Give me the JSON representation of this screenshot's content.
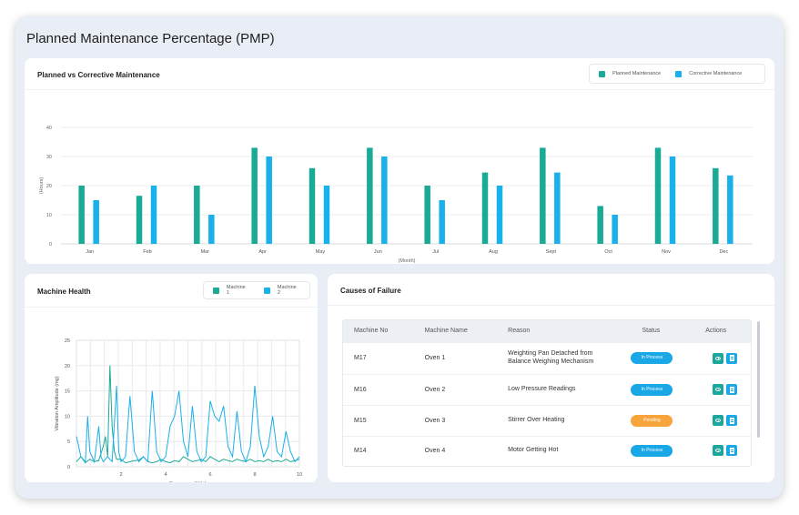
{
  "page": {
    "title": "Planned Maintenance Percentage (PMP)"
  },
  "colors": {
    "planned": "#1aaa96",
    "corrective": "#1ab0ea",
    "in_process": "#1aa7e6",
    "pending": "#f7a43a"
  },
  "bar_card": {
    "title": "Planned vs Corrective Maintenance",
    "legend": [
      "Planned Maintenance",
      "Corrective Maintenance"
    ]
  },
  "health_card": {
    "title": "Machine Health",
    "legend": [
      "Machine 1",
      "Machine 2"
    ]
  },
  "failure_card": {
    "title": "Causes of Failure",
    "columns": [
      "Machine No",
      "Machine Name",
      "Reason",
      "Status",
      "Actions"
    ],
    "rows": [
      {
        "no": "M17",
        "name": "Oven 1",
        "reason": "Weighting Pan Detached from Balance Weighing Mechanism",
        "status": "In Process",
        "status_type": "in_process"
      },
      {
        "no": "M16",
        "name": "Oven 2",
        "reason": "Low Pressure Readings",
        "status": "In Process",
        "status_type": "in_process"
      },
      {
        "no": "M15",
        "name": "Oven 3",
        "reason": "Stirrer Over Heating",
        "status": "Pending",
        "status_type": "pending"
      },
      {
        "no": "M14",
        "name": "Oven 4",
        "reason": "Motor Getting Hot",
        "status": "In Process",
        "status_type": "in_process"
      }
    ]
  },
  "chart_data": [
    {
      "type": "bar",
      "title": "Planned vs Corrective Maintenance",
      "xlabel": "(Month)",
      "ylabel": "(Hours)",
      "ylim": [
        0,
        40
      ],
      "yticks": [
        0,
        10,
        20,
        30,
        40
      ],
      "grid": true,
      "legend_position": "top-right",
      "categories": [
        "Jan",
        "Feb",
        "Mar",
        "Apr",
        "May",
        "Jun",
        "Jul",
        "Aug",
        "Sept",
        "Oct",
        "Nov",
        "Dec"
      ],
      "series": [
        {
          "name": "Planned Maintenance",
          "values": [
            20,
            16.5,
            20,
            33,
            26,
            33,
            20,
            24.5,
            33,
            13,
            33,
            26
          ]
        },
        {
          "name": "Corrective Maintenance",
          "values": [
            15,
            20,
            10,
            30,
            20,
            30,
            15,
            20,
            24.5,
            10,
            30,
            23.5
          ]
        }
      ]
    },
    {
      "type": "line",
      "title": "Machine Health",
      "xlabel": "Frequency (kHz)",
      "ylabel": "Vibration Amplitude (mg)",
      "xlim": [
        0,
        10
      ],
      "ylim": [
        0,
        25
      ],
      "xticks": [
        2,
        4,
        6,
        8,
        10
      ],
      "yticks": [
        0,
        5,
        10,
        15,
        20,
        25
      ],
      "grid": true,
      "legend_position": "top-right",
      "series": [
        {
          "name": "Machine 1",
          "x": [
            0,
            0.2,
            0.4,
            0.6,
            0.8,
            1.0,
            1.2,
            1.3,
            1.4,
            1.5,
            1.6,
            1.7,
            1.8,
            2.0,
            2.2,
            2.4,
            2.6,
            2.8,
            3.0,
            3.2,
            3.4,
            3.6,
            3.8,
            4.0,
            4.2,
            4.4,
            4.6,
            4.8,
            5.0,
            5.2,
            5.4,
            5.6,
            5.8,
            6.0,
            6.2,
            6.4,
            6.6,
            6.8,
            7.0,
            7.2,
            7.4,
            7.6,
            7.8,
            8.0,
            8.2,
            8.4,
            8.6,
            8.8,
            9.0,
            9.2,
            9.4,
            9.6,
            9.8,
            10.0
          ],
          "y": [
            1,
            2,
            0.8,
            1.5,
            1,
            1.2,
            4,
            6,
            2,
            20,
            8,
            3,
            1.5,
            1.5,
            0.8,
            1,
            1.2,
            1.3,
            2,
            1,
            0.8,
            1,
            1.5,
            1,
            0.8,
            1.2,
            1,
            2,
            1.5,
            1,
            1.2,
            1.5,
            1,
            2,
            1.5,
            1,
            1.5,
            1.2,
            1,
            1.5,
            1.2,
            1,
            1.5,
            1,
            1.2,
            1,
            1.5,
            1,
            1.2,
            1,
            1.5,
            1,
            1.2,
            1.5
          ]
        },
        {
          "name": "Machine 2",
          "x": [
            0,
            0.2,
            0.4,
            0.5,
            0.6,
            0.8,
            1.0,
            1.1,
            1.2,
            1.4,
            1.6,
            1.8,
            1.9,
            2.0,
            2.2,
            2.4,
            2.6,
            2.8,
            3.0,
            3.2,
            3.4,
            3.6,
            3.8,
            4.0,
            4.2,
            4.4,
            4.6,
            4.8,
            5.0,
            5.2,
            5.4,
            5.6,
            5.8,
            6.0,
            6.2,
            6.4,
            6.6,
            6.8,
            7.0,
            7.2,
            7.4,
            7.6,
            7.8,
            8.0,
            8.2,
            8.4,
            8.6,
            8.8,
            9.0,
            9.2,
            9.4,
            9.6,
            9.8,
            10.0
          ],
          "y": [
            6,
            2,
            1,
            10,
            3,
            1,
            8,
            2,
            1,
            2,
            1,
            16,
            3,
            1,
            2,
            14,
            3,
            1,
            2,
            1,
            15,
            3,
            1,
            2,
            8,
            10,
            15,
            5,
            2,
            12,
            3,
            1,
            2,
            13,
            10,
            9,
            12,
            4,
            2,
            11,
            3,
            1,
            4,
            16,
            6,
            2,
            4,
            10,
            3,
            2,
            7,
            3,
            1,
            2
          ]
        }
      ]
    }
  ]
}
